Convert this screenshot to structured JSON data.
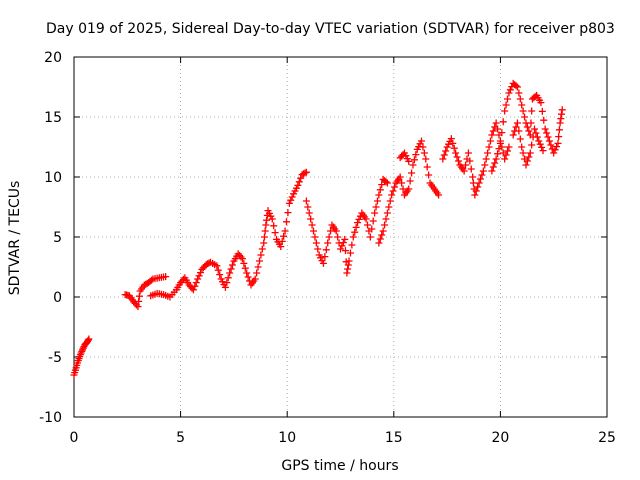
{
  "chart_data": {
    "type": "scatter",
    "title": "Day 019 of 2025, Sidereal Day-to-day VTEC variation (SDTVAR) for receiver p803",
    "xlabel": "GPS time / hours",
    "ylabel": "SDTVAR / TECUs",
    "xlim": [
      0,
      25
    ],
    "ylim": [
      -10,
      20
    ],
    "xticks": [
      0,
      5,
      10,
      15,
      20,
      25
    ],
    "yticks": [
      -10,
      -5,
      0,
      5,
      10,
      15,
      20
    ],
    "grid": true,
    "marker": "plus",
    "series": [
      {
        "name": "SDTVAR",
        "color": "#ff0000",
        "points": [
          [
            0.0,
            -6.5
          ],
          [
            0.1,
            -5.9
          ],
          [
            0.2,
            -5.3
          ],
          [
            0.3,
            -4.8
          ],
          [
            0.4,
            -4.4
          ],
          [
            0.5,
            -4.0
          ],
          [
            0.6,
            -3.8
          ],
          [
            0.7,
            -3.5
          ],
          [
            2.4,
            0.2
          ],
          [
            2.6,
            0.1
          ],
          [
            2.8,
            -0.4
          ],
          [
            3.0,
            -0.8
          ],
          [
            3.1,
            0.5
          ],
          [
            3.3,
            1.0
          ],
          [
            3.5,
            1.2
          ],
          [
            3.7,
            1.5
          ],
          [
            4.0,
            1.6
          ],
          [
            4.3,
            1.7
          ],
          [
            3.6,
            0.1
          ],
          [
            3.9,
            0.3
          ],
          [
            4.2,
            0.2
          ],
          [
            4.5,
            0.0
          ],
          [
            4.8,
            0.6
          ],
          [
            5.0,
            1.2
          ],
          [
            5.2,
            1.6
          ],
          [
            5.4,
            1.0
          ],
          [
            5.6,
            0.6
          ],
          [
            5.8,
            1.5
          ],
          [
            6.0,
            2.3
          ],
          [
            6.2,
            2.7
          ],
          [
            6.4,
            2.9
          ],
          [
            6.7,
            2.6
          ],
          [
            6.9,
            1.5
          ],
          [
            7.1,
            0.8
          ],
          [
            7.3,
            2.0
          ],
          [
            7.5,
            3.0
          ],
          [
            7.7,
            3.6
          ],
          [
            7.9,
            3.2
          ],
          [
            8.1,
            2.0
          ],
          [
            8.3,
            1.0
          ],
          [
            8.5,
            1.5
          ],
          [
            8.7,
            3.0
          ],
          [
            8.9,
            4.5
          ],
          [
            9.0,
            6.0
          ],
          [
            9.1,
            7.2
          ],
          [
            9.3,
            6.5
          ],
          [
            9.5,
            4.8
          ],
          [
            9.7,
            4.2
          ],
          [
            9.9,
            5.5
          ],
          [
            10.1,
            7.8
          ],
          [
            10.3,
            8.6
          ],
          [
            10.5,
            9.3
          ],
          [
            10.7,
            10.2
          ],
          [
            10.9,
            10.4
          ],
          [
            10.9,
            8.0
          ],
          [
            11.1,
            6.5
          ],
          [
            11.3,
            5.0
          ],
          [
            11.5,
            3.5
          ],
          [
            11.7,
            2.8
          ],
          [
            11.9,
            4.5
          ],
          [
            12.1,
            6.0
          ],
          [
            12.3,
            5.5
          ],
          [
            12.5,
            4.0
          ],
          [
            12.7,
            4.8
          ],
          [
            12.8,
            2.0
          ],
          [
            12.9,
            3.0
          ],
          [
            13.1,
            5.0
          ],
          [
            13.3,
            6.2
          ],
          [
            13.5,
            7.0
          ],
          [
            13.7,
            6.5
          ],
          [
            13.9,
            5.0
          ],
          [
            14.1,
            7.0
          ],
          [
            14.3,
            8.5
          ],
          [
            14.5,
            9.8
          ],
          [
            14.7,
            9.5
          ],
          [
            14.3,
            4.5
          ],
          [
            14.5,
            5.5
          ],
          [
            14.7,
            7.0
          ],
          [
            14.9,
            8.5
          ],
          [
            15.1,
            9.5
          ],
          [
            15.3,
            10.0
          ],
          [
            15.5,
            8.5
          ],
          [
            15.7,
            9.0
          ],
          [
            15.9,
            11.0
          ],
          [
            16.1,
            12.3
          ],
          [
            16.3,
            13.0
          ],
          [
            16.5,
            11.5
          ],
          [
            16.7,
            9.5
          ],
          [
            16.9,
            9.0
          ],
          [
            17.1,
            8.5
          ],
          [
            15.3,
            11.6
          ],
          [
            15.5,
            12.0
          ],
          [
            15.7,
            11.3
          ],
          [
            17.3,
            11.5
          ],
          [
            17.5,
            12.5
          ],
          [
            17.7,
            13.2
          ],
          [
            17.9,
            12.0
          ],
          [
            18.1,
            11.0
          ],
          [
            18.3,
            10.5
          ],
          [
            18.5,
            12.0
          ],
          [
            18.7,
            10.0
          ],
          [
            18.8,
            8.5
          ],
          [
            19.0,
            9.5
          ],
          [
            19.2,
            10.5
          ],
          [
            19.4,
            12.0
          ],
          [
            19.6,
            13.5
          ],
          [
            19.8,
            14.5
          ],
          [
            20.0,
            13.0
          ],
          [
            20.2,
            11.5
          ],
          [
            20.4,
            12.5
          ],
          [
            19.6,
            10.5
          ],
          [
            19.8,
            11.5
          ],
          [
            20.0,
            12.8
          ],
          [
            20.2,
            15.5
          ],
          [
            20.4,
            17.0
          ],
          [
            20.6,
            17.8
          ],
          [
            20.8,
            17.5
          ],
          [
            21.0,
            16.0
          ],
          [
            21.2,
            14.5
          ],
          [
            21.4,
            13.5
          ],
          [
            21.5,
            16.5
          ],
          [
            21.7,
            16.8
          ],
          [
            21.9,
            16.2
          ],
          [
            22.1,
            14.0
          ],
          [
            22.3,
            13.0
          ],
          [
            22.5,
            12.0
          ],
          [
            22.7,
            12.8
          ],
          [
            22.8,
            14.5
          ],
          [
            22.9,
            15.6
          ],
          [
            20.6,
            13.5
          ],
          [
            20.8,
            14.5
          ],
          [
            21.0,
            12.5
          ],
          [
            21.2,
            11.0
          ],
          [
            21.4,
            12.0
          ],
          [
            21.6,
            14.0
          ],
          [
            21.8,
            13.0
          ],
          [
            22.0,
            12.2
          ]
        ]
      }
    ]
  }
}
